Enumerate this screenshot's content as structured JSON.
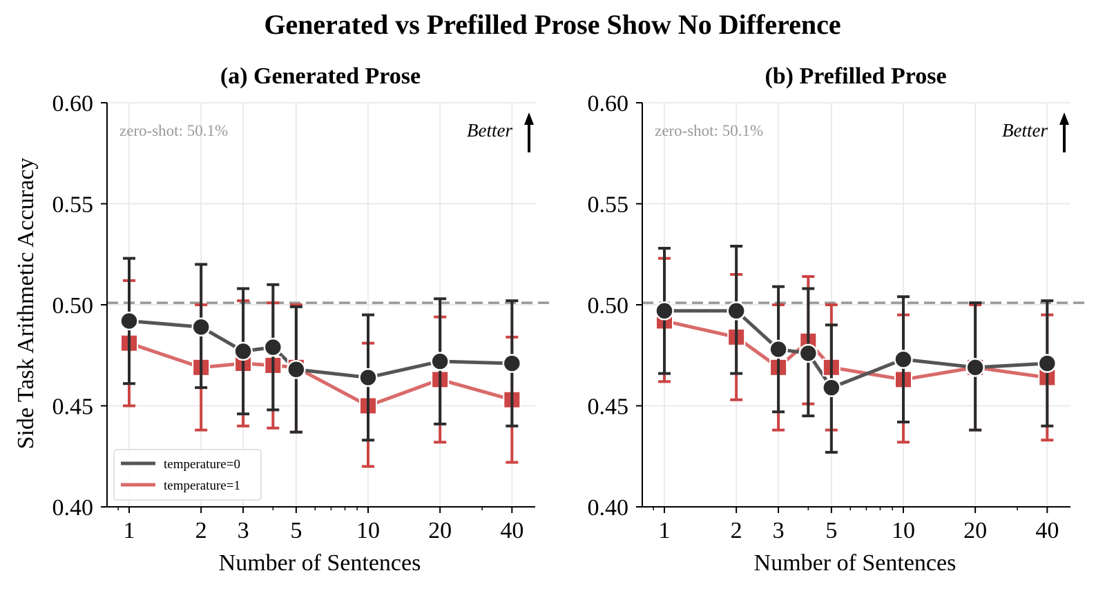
{
  "figure": {
    "suptitle": "Generated vs Prefilled Prose Show No Difference"
  },
  "chart_data": [
    {
      "type": "line",
      "title": "(a) Generated Prose",
      "xlabel": "Number of Sentences",
      "ylabel": "Side Task Arithmetic Accuracy",
      "xscale": "log",
      "xticks": [
        1,
        2,
        3,
        5,
        10,
        20,
        40
      ],
      "xtick_labels": [
        "1",
        "2",
        "3",
        "5",
        "10",
        "20",
        "40"
      ],
      "yticks": [
        0.4,
        0.45,
        0.5,
        0.55,
        0.6
      ],
      "ytick_labels": [
        "0.40",
        "0.45",
        "0.50",
        "0.55",
        "0.60"
      ],
      "xlim": [
        0.85,
        48
      ],
      "ylim": [
        0.4,
        0.6
      ],
      "grid": true,
      "reference_line": {
        "y": 0.501,
        "style": "dashed",
        "label": "zero-shot: 50.1%"
      },
      "annotation": {
        "text": "Better",
        "arrow": "up"
      },
      "legend": {
        "position": "lower-left",
        "entries": [
          "temperature=0",
          "temperature=1"
        ]
      },
      "x": [
        1,
        2,
        3,
        4,
        5,
        10,
        20,
        40
      ],
      "series": [
        {
          "name": "temperature=0",
          "marker": "circle",
          "line_color": "#555555",
          "marker_color": "#2b2b2b",
          "values": [
            0.492,
            0.489,
            0.477,
            0.479,
            0.468,
            0.464,
            0.472,
            0.471
          ],
          "err_low": [
            0.461,
            0.459,
            0.446,
            0.448,
            0.437,
            0.433,
            0.441,
            0.44
          ],
          "err_high": [
            0.523,
            0.52,
            0.508,
            0.51,
            0.499,
            0.495,
            0.503,
            0.502
          ]
        },
        {
          "name": "temperature=1",
          "marker": "square",
          "line_color": "#d96a6a",
          "marker_color": "#cc4444",
          "values": [
            0.481,
            0.469,
            0.471,
            0.47,
            0.469,
            0.45,
            0.463,
            0.453
          ],
          "err_low": [
            0.45,
            0.438,
            0.44,
            0.439,
            0.437,
            0.42,
            0.432,
            0.422
          ],
          "err_high": [
            0.512,
            0.5,
            0.502,
            0.501,
            0.5,
            0.481,
            0.494,
            0.484
          ]
        }
      ]
    },
    {
      "type": "line",
      "title": "(b) Prefilled Prose",
      "xlabel": "Number of Sentences",
      "ylabel": "",
      "xscale": "log",
      "xticks": [
        1,
        2,
        3,
        5,
        10,
        20,
        40
      ],
      "xtick_labels": [
        "1",
        "2",
        "3",
        "5",
        "10",
        "20",
        "40"
      ],
      "yticks": [
        0.4,
        0.45,
        0.5,
        0.55,
        0.6
      ],
      "ytick_labels": [
        "0.40",
        "0.45",
        "0.50",
        "0.55",
        "0.60"
      ],
      "xlim": [
        0.85,
        48
      ],
      "ylim": [
        0.4,
        0.6
      ],
      "grid": true,
      "reference_line": {
        "y": 0.501,
        "style": "dashed",
        "label": "zero-shot: 50.1%"
      },
      "annotation": {
        "text": "Better",
        "arrow": "up"
      },
      "x": [
        1,
        2,
        3,
        4,
        5,
        10,
        20,
        40
      ],
      "series": [
        {
          "name": "temperature=0",
          "marker": "circle",
          "line_color": "#555555",
          "marker_color": "#2b2b2b",
          "values": [
            0.497,
            0.497,
            0.478,
            0.476,
            0.459,
            0.473,
            0.469,
            0.471
          ],
          "err_low": [
            0.466,
            0.466,
            0.447,
            0.445,
            0.427,
            0.442,
            0.438,
            0.44
          ],
          "err_high": [
            0.528,
            0.529,
            0.509,
            0.508,
            0.49,
            0.504,
            0.501,
            0.502
          ]
        },
        {
          "name": "temperature=1",
          "marker": "square",
          "line_color": "#d96a6a",
          "marker_color": "#cc4444",
          "values": [
            0.492,
            0.484,
            0.469,
            0.482,
            0.469,
            0.463,
            0.469,
            0.464
          ],
          "err_low": [
            0.462,
            0.453,
            0.438,
            0.451,
            0.438,
            0.432,
            0.438,
            0.433
          ],
          "err_high": [
            0.523,
            0.515,
            0.5,
            0.514,
            0.5,
            0.495,
            0.5,
            0.495
          ]
        }
      ]
    }
  ]
}
